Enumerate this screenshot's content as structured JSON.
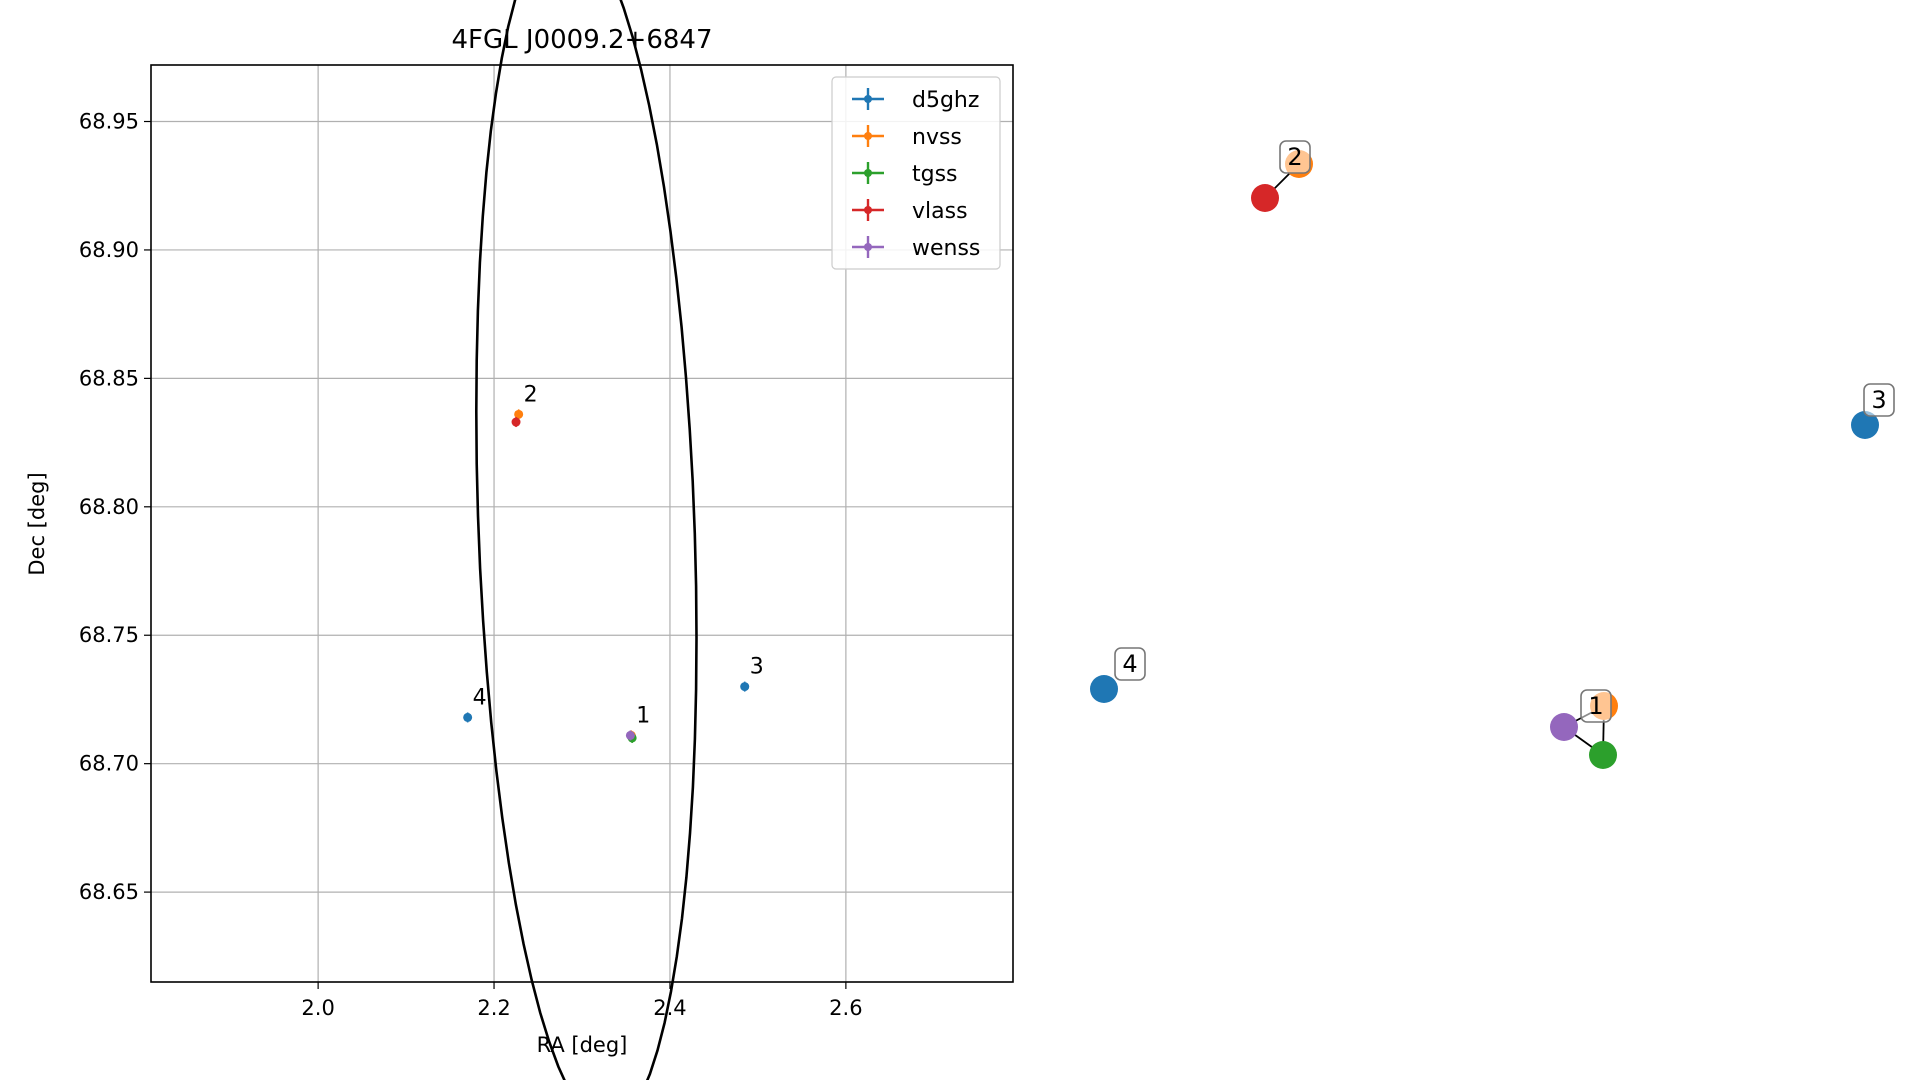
{
  "chart_data": [
    {
      "type": "scatter",
      "title": "4FGL J0009.2+6847",
      "xlabel": "RA [deg]",
      "ylabel": "Dec [deg]",
      "xlim": [
        1.81,
        2.79
      ],
      "ylim": [
        68.615,
        68.972
      ],
      "xticks": [
        2.0,
        2.2,
        2.4,
        2.6
      ],
      "xtick_labels": [
        "2.0",
        "2.2",
        "2.4",
        "2.6"
      ],
      "yticks": [
        68.65,
        68.7,
        68.75,
        68.8,
        68.85,
        68.9,
        68.95
      ],
      "ytick_labels": [
        "68.65",
        "68.70",
        "68.75",
        "68.80",
        "68.85",
        "68.90",
        "68.95"
      ],
      "grid": true,
      "legend_position": "top-right",
      "series": [
        {
          "name": "d5ghz",
          "color": "#1f77b4",
          "points": [
            {
              "x": 2.485,
              "y": 68.73
            },
            {
              "x": 2.17,
              "y": 68.718
            }
          ]
        },
        {
          "name": "nvss",
          "color": "#ff7f0e",
          "points": [
            {
              "x": 2.228,
              "y": 68.836
            },
            {
              "x": 2.356,
              "y": 68.711
            }
          ]
        },
        {
          "name": "tgss",
          "color": "#2ca02c",
          "points": [
            {
              "x": 2.357,
              "y": 68.71
            }
          ]
        },
        {
          "name": "vlass",
          "color": "#d62728",
          "points": [
            {
              "x": 2.225,
              "y": 68.833
            }
          ]
        },
        {
          "name": "wenss",
          "color": "#9467bd",
          "points": [
            {
              "x": 2.355,
              "y": 68.711
            }
          ]
        }
      ],
      "point_labels": [
        {
          "text": "1",
          "x": 2.356,
          "y": 68.711
        },
        {
          "text": "2",
          "x": 2.228,
          "y": 68.836
        },
        {
          "text": "3",
          "x": 2.485,
          "y": 68.73
        },
        {
          "text": "4",
          "x": 2.17,
          "y": 68.718
        }
      ],
      "ellipse": {
        "center": [
          2.305,
          68.793
        ],
        "semi_axes_deg": [
          0.236,
          0.122
        ],
        "angle_deg": 98,
        "color": "#000000"
      }
    },
    {
      "type": "network",
      "groups": [
        {
          "label": "1",
          "nodes": [
            {
              "series": "nvss",
              "color": "#ff7f0e"
            },
            {
              "series": "wenss",
              "color": "#9467bd"
            },
            {
              "series": "tgss",
              "color": "#2ca02c"
            }
          ]
        },
        {
          "label": "2",
          "nodes": [
            {
              "series": "nvss",
              "color": "#ff7f0e"
            },
            {
              "series": "vlass",
              "color": "#d62728"
            }
          ]
        },
        {
          "label": "3",
          "nodes": [
            {
              "series": "d5ghz",
              "color": "#1f77b4"
            }
          ]
        },
        {
          "label": "4",
          "nodes": [
            {
              "series": "d5ghz",
              "color": "#1f77b4"
            }
          ]
        }
      ]
    }
  ]
}
